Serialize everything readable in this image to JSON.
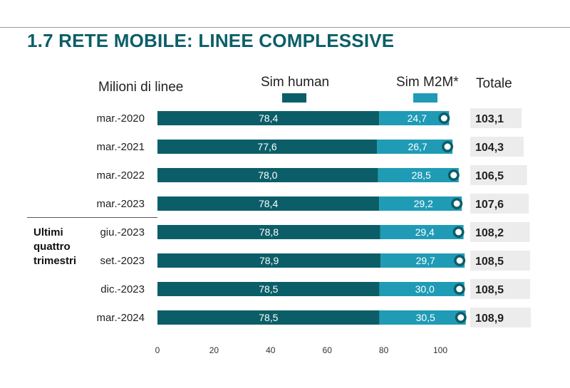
{
  "title": "1.7 RETE MOBILE: LINEE COMPLESSIVE",
  "headers": {
    "unit": "Milioni di linee",
    "series1": "Sim human",
    "series2": "Sim M2M*",
    "total": "Totale"
  },
  "group_label": "Ultimi\nquattro\ntrimestri",
  "colors": {
    "sim_human": "#0b5e68",
    "sim_m2m": "#1f9bb5",
    "total_bg": "#ececec",
    "title": "#0b5e68"
  },
  "chart_data": {
    "type": "bar",
    "orientation": "horizontal",
    "stacked": true,
    "categories": [
      "mar.-2020",
      "mar.-2021",
      "mar.-2022",
      "mar.-2023",
      "giu.-2023",
      "set.-2023",
      "dic.-2023",
      "mar.-2024"
    ],
    "series": [
      {
        "name": "Sim human",
        "values": [
          78.4,
          77.6,
          78.0,
          78.4,
          78.8,
          78.9,
          78.5,
          78.5
        ],
        "labels": [
          "78,4",
          "77,6",
          "78,0",
          "78,4",
          "78,8",
          "78,9",
          "78,5",
          "78,5"
        ]
      },
      {
        "name": "Sim M2M*",
        "values": [
          24.7,
          26.7,
          28.5,
          29.2,
          29.4,
          29.7,
          30.0,
          30.5
        ],
        "labels": [
          "24,7",
          "26,7",
          "28,5",
          "29,2",
          "29,4",
          "29,7",
          "30,0",
          "30,5"
        ]
      }
    ],
    "totals": [
      103.1,
      104.3,
      106.5,
      107.6,
      108.2,
      108.5,
      108.5,
      108.9
    ],
    "total_labels": [
      "103,1",
      "104,3",
      "106,5",
      "107,6",
      "108,2",
      "108,5",
      "108,5",
      "108,9"
    ],
    "xlim": [
      0,
      100
    ],
    "xticks": [
      0,
      20,
      40,
      60,
      80,
      100
    ],
    "xlabel": "",
    "ylabel": "Milioni di linee",
    "grid": false
  }
}
